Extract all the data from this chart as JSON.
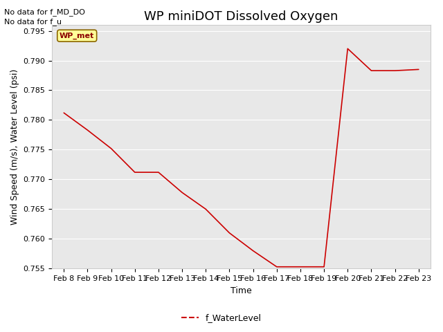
{
  "title": "WP miniDOT Dissolved Oxygen",
  "xlabel": "Time",
  "ylabel": "Wind Speed (m/s), Water Level (psi)",
  "plot_bg_color": "#e8e8e8",
  "fig_bg_color": "#ffffff",
  "line_color": "#cc0000",
  "no_data_texts": [
    "No data for f_MD_DO",
    "No data for f_u"
  ],
  "wp_met_label": "WP_met",
  "legend_label": "f_WaterLevel",
  "ylim": [
    0.755,
    0.796
  ],
  "yticks": [
    0.755,
    0.76,
    0.765,
    0.77,
    0.775,
    0.78,
    0.785,
    0.79,
    0.795
  ],
  "x_dates": [
    "Feb 8",
    "Feb 9",
    "Feb 10",
    "Feb 11",
    "Feb 12",
    "Feb 13",
    "Feb 14",
    "Feb 15",
    "Feb 16",
    "Feb 17",
    "Feb 18",
    "Feb 19",
    "Feb 20",
    "Feb 21",
    "Feb 22",
    "Feb 23"
  ],
  "x_numeric": [
    0,
    1,
    2,
    3,
    4,
    5,
    6,
    7,
    8,
    9,
    10,
    11,
    12,
    13,
    14,
    15
  ],
  "y_values": [
    0.7812,
    0.7783,
    0.7752,
    0.7712,
    0.7712,
    0.7678,
    0.765,
    0.761,
    0.758,
    0.7553,
    0.7553,
    0.7553,
    0.792,
    0.7883,
    0.7883,
    0.7885
  ],
  "title_fontsize": 13,
  "axis_label_fontsize": 9,
  "tick_fontsize": 8,
  "no_data_fontsize": 8,
  "wp_met_fontsize": 8,
  "legend_fontsize": 9
}
